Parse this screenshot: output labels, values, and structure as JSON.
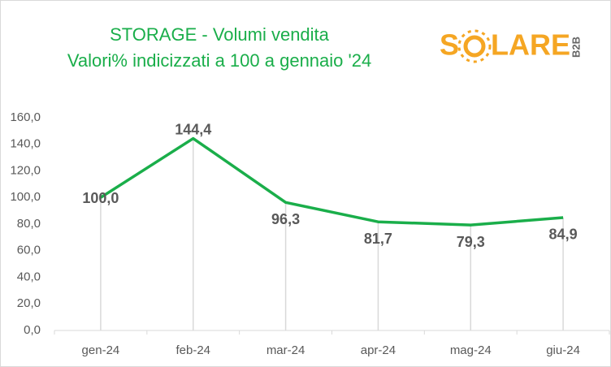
{
  "chart_data": {
    "type": "line",
    "title": [
      "STORAGE  - Volumi  vendita",
      "Valori%  indicizzati  a 100 a gennaio  '24"
    ],
    "logo": {
      "text": [
        "S",
        "LARE"
      ],
      "badge": "B2B"
    },
    "categories": [
      "gen-24",
      "feb-24",
      "mar-24",
      "apr-24",
      "mag-24",
      "giu-24"
    ],
    "series": [
      {
        "color": "#1aae4a",
        "values": [
          100.0,
          144.4,
          96.3,
          81.7,
          79.3,
          84.9
        ],
        "value_labels": [
          "100,0",
          "144,4",
          "96,3",
          "81,7",
          "79,3",
          "84,9"
        ]
      }
    ],
    "ylim": [
      0,
      160
    ],
    "yticks": [
      {
        "value": 0,
        "label": "0,0"
      },
      {
        "value": 20,
        "label": "20,0"
      },
      {
        "value": 40,
        "label": "40,0"
      },
      {
        "value": 60,
        "label": "60,0"
      },
      {
        "value": 80,
        "label": "80,0"
      },
      {
        "value": 100,
        "label": "100,0"
      },
      {
        "value": 120,
        "label": "120,0"
      },
      {
        "value": 140,
        "label": "140,0"
      },
      {
        "value": 160,
        "label": "160,0"
      }
    ],
    "drop_lines": true
  }
}
